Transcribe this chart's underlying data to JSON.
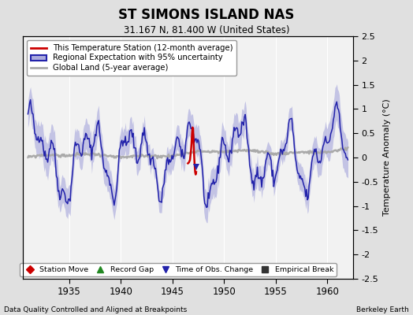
{
  "title": "ST SIMONS ISLAND NAS",
  "subtitle": "31.167 N, 81.400 W (United States)",
  "ylabel": "Temperature Anomaly (°C)",
  "footer_left": "Data Quality Controlled and Aligned at Breakpoints",
  "footer_right": "Berkeley Earth",
  "xlim": [
    1930.5,
    1962.5
  ],
  "ylim": [
    -2.5,
    2.5
  ],
  "xticks": [
    1935,
    1940,
    1945,
    1950,
    1955,
    1960
  ],
  "yticks_right": [
    -2.5,
    -2,
    -1.5,
    -1,
    -0.5,
    0,
    0.5,
    1,
    1.5,
    2,
    2.5
  ],
  "outer_bg": "#e0e0e0",
  "plot_bg": "#f2f2f2",
  "regional_color": "#2222aa",
  "regional_fill_color": "#aaaadd",
  "station_color": "#cc0000",
  "global_land_color": "#aaaaaa",
  "legend1_entries": [
    {
      "label": "This Temperature Station (12-month average)",
      "color": "#cc0000"
    },
    {
      "label": "Regional Expectation with 95% uncertainty",
      "color": "#2222aa",
      "fill": "#aaaadd"
    },
    {
      "label": "Global Land (5-year average)",
      "color": "#aaaaaa"
    }
  ],
  "legend2_entries": [
    {
      "label": "Station Move",
      "color": "#cc0000",
      "marker": "D"
    },
    {
      "label": "Record Gap",
      "color": "#228822",
      "marker": "^"
    },
    {
      "label": "Time of Obs. Change",
      "color": "#2222aa",
      "marker": "v"
    },
    {
      "label": "Empirical Break",
      "color": "#333333",
      "marker": "s"
    }
  ],
  "red_segment_x": [
    1946.5,
    1946.6,
    1946.7,
    1946.75,
    1946.8,
    1946.85,
    1946.9,
    1946.95,
    1947.0,
    1947.05,
    1947.1,
    1947.15,
    1947.2,
    1947.25,
    1947.3
  ],
  "red_segment_y": [
    -0.12,
    -0.1,
    -0.05,
    0.05,
    0.15,
    0.3,
    0.5,
    0.62,
    0.6,
    0.3,
    0.05,
    -0.15,
    -0.3,
    -0.35,
    -0.3
  ],
  "obs_change_x": 1947.3,
  "obs_change_y": -0.2
}
